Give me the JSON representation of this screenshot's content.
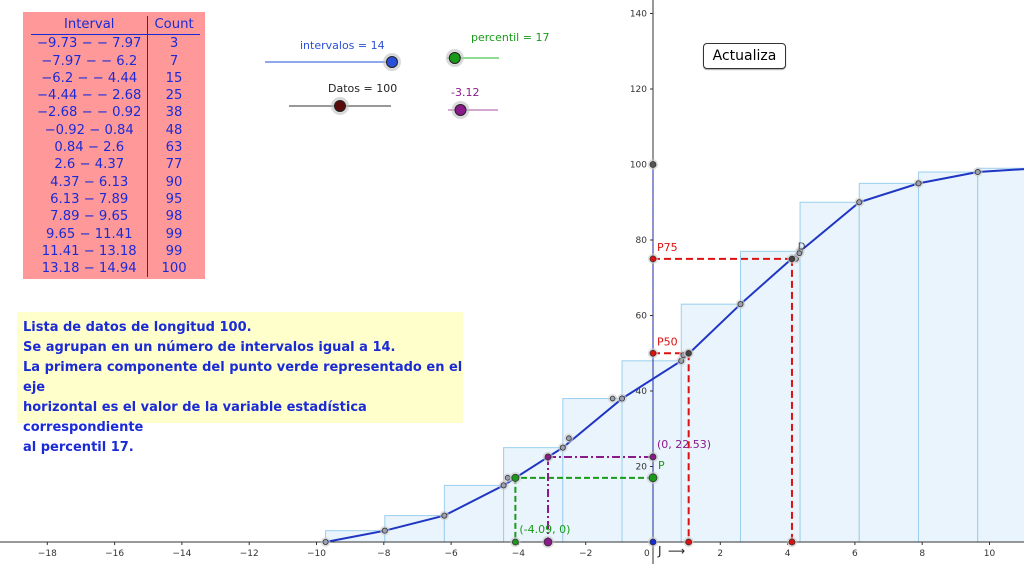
{
  "freq_table": {
    "headers": [
      "Interval",
      "Count"
    ],
    "rows": [
      [
        "−9.73 − − 7.97",
        "3"
      ],
      [
        "−7.97 − − 6.2",
        "7"
      ],
      [
        "−6.2 − − 4.44",
        "15"
      ],
      [
        "−4.44 − − 2.68",
        "25"
      ],
      [
        "−2.68 − − 0.92",
        "38"
      ],
      [
        "−0.92 − 0.84",
        "48"
      ],
      [
        "0.84 − 2.6",
        "63"
      ],
      [
        "2.6 − 4.37",
        "77"
      ],
      [
        "4.37 − 6.13",
        "90"
      ],
      [
        "6.13 − 7.89",
        "95"
      ],
      [
        "7.89 − 9.65",
        "98"
      ],
      [
        "9.65 − 11.41",
        "99"
      ],
      [
        "11.41 − 13.18",
        "99"
      ],
      [
        "13.18 − 14.94",
        "100"
      ]
    ]
  },
  "sliders": {
    "intervalos": {
      "label": "intervalos = 14",
      "value": 14,
      "fraction": 1.0,
      "color": "#2b4fd8"
    },
    "percentil": {
      "label": "percentil = 17",
      "value": 17,
      "fraction": 0.15,
      "color": "#1a9a1a"
    },
    "datos": {
      "label": "Datos = 100",
      "value": 100,
      "fraction": 0.5,
      "color": "#5a0c0c"
    },
    "purple": {
      "label": "-3.12",
      "value": -3.12,
      "fraction": 0.25,
      "color": "#8a1a8a"
    }
  },
  "update_button": {
    "label": "Actualiza"
  },
  "info": {
    "lines": [
      "Lista de datos de longitud 100.",
      "Se agrupan en un número de intervalos igual a 14.",
      "La primera componente del punto verde representado en el eje",
      "horizontal es el valor de la variable estadística correspondiente",
      "al percentil 17."
    ]
  },
  "chart_data": {
    "type": "histogram-ogive",
    "x_axis": {
      "range": [
        -19.7,
        11
      ],
      "ticks": [
        -18,
        -16,
        -14,
        -12,
        -10,
        -8,
        -6,
        -4,
        -2,
        0,
        2,
        4,
        6,
        8,
        10
      ]
    },
    "y_axis": {
      "range": [
        0,
        142
      ],
      "ticks": [
        20,
        40,
        60,
        80,
        100,
        120,
        140
      ]
    },
    "bars": [
      {
        "x0": -9.73,
        "x1": -7.97,
        "value": 3
      },
      {
        "x0": -7.97,
        "x1": -6.2,
        "value": 7
      },
      {
        "x0": -6.2,
        "x1": -4.44,
        "value": 15
      },
      {
        "x0": -4.44,
        "x1": -2.68,
        "value": 25
      },
      {
        "x0": -2.68,
        "x1": -0.92,
        "value": 38
      },
      {
        "x0": -0.92,
        "x1": 0.84,
        "value": 48
      },
      {
        "x0": 0.84,
        "x1": 2.6,
        "value": 63
      },
      {
        "x0": 2.6,
        "x1": 4.37,
        "value": 77
      },
      {
        "x0": 4.37,
        "x1": 6.13,
        "value": 90
      },
      {
        "x0": 6.13,
        "x1": 7.89,
        "value": 95
      },
      {
        "x0": 7.89,
        "x1": 9.65,
        "value": 98
      },
      {
        "x0": 9.65,
        "x1": 11.41,
        "value": 99
      },
      {
        "x0": 11.41,
        "x1": 13.18,
        "value": 99
      },
      {
        "x0": 13.18,
        "x1": 14.94,
        "value": 100
      }
    ],
    "ogive": [
      [
        -9.73,
        0
      ],
      [
        -7.97,
        3
      ],
      [
        -6.2,
        7
      ],
      [
        -4.44,
        15
      ],
      [
        -2.68,
        25
      ],
      [
        -0.92,
        38
      ],
      [
        0.84,
        48
      ],
      [
        2.6,
        63
      ],
      [
        4.37,
        77
      ],
      [
        6.13,
        90
      ],
      [
        7.89,
        95
      ],
      [
        9.65,
        98
      ],
      [
        11.41,
        99
      ]
    ],
    "extra_points": [
      [
        -4.32,
        17
      ],
      [
        -2.5,
        27.5
      ],
      [
        -1.2,
        38
      ],
      [
        0.9,
        49.5
      ],
      [
        1.06,
        50
      ],
      [
        4.25,
        75
      ],
      [
        4.35,
        76.5
      ]
    ],
    "percentiles": [
      {
        "label": "P75",
        "y": 75,
        "x": 4.13,
        "color": "#dd1111"
      },
      {
        "label": "P50",
        "y": 50,
        "x": 1.06,
        "color": "#dd1111"
      },
      {
        "label": "P",
        "y": 17,
        "x": -4.09,
        "color": "#1a9a1a"
      }
    ],
    "annotations": {
      "green_point_label": "(-4.09, 0)",
      "purple_point_label": "(0, 22.53)",
      "purple_x": -3.12,
      "purple_y": 22.53,
      "axis_J_label": "J",
      "axis_arrow_label": "⟶",
      "origin_label": "0",
      "top_point_y": 100,
      "corner_label": "D"
    },
    "colors": {
      "bar_fill": "#eaf4fc",
      "bar_stroke": "#9ccfee",
      "ogive": "#1f35c4",
      "axis_blue": "#3a4adc",
      "green": "#1a9a1a",
      "purple": "#8a1a8a",
      "red": "#dd1111"
    }
  }
}
